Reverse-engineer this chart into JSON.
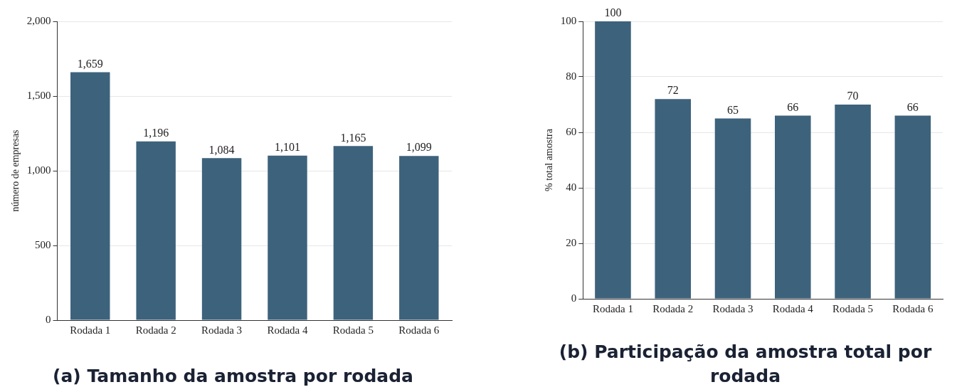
{
  "chart_data": [
    {
      "type": "bar",
      "title": "(a) Tamanho da amostra por rodada",
      "ylabel": "número de empresas",
      "categories": [
        "Rodada 1",
        "Rodada 2",
        "Rodada 3",
        "Rodada 4",
        "Rodada 5",
        "Rodada 6"
      ],
      "values": [
        1659,
        1196,
        1084,
        1101,
        1165,
        1099
      ],
      "value_labels": [
        "1,659",
        "1,196",
        "1,084",
        "1,101",
        "1,165",
        "1,099"
      ],
      "color": "#3d627c",
      "ylim": [
        0,
        2000
      ],
      "yticks": [
        0,
        500,
        {
          "value": 1000,
          "label": "1,000"
        },
        {
          "value": 1500,
          "label": "1,500"
        },
        {
          "value": 2000,
          "label": "2,000"
        }
      ],
      "grid": "y",
      "legend": false
    },
    {
      "type": "bar",
      "title": "(b) Participação da amostra total por rodada",
      "ylabel": "% total amostra",
      "categories": [
        "Rodada 1",
        "Rodada 2",
        "Rodada 3",
        "Rodada 4",
        "Rodada 5",
        "Rodada 6"
      ],
      "values": [
        100,
        72,
        65,
        66,
        70,
        66
      ],
      "data_labels": true,
      "color": "#3d627c",
      "ylim": [
        0,
        100
      ],
      "yticks": [
        0,
        20,
        40,
        60,
        80,
        100
      ],
      "grid": "y",
      "legend": false
    }
  ]
}
